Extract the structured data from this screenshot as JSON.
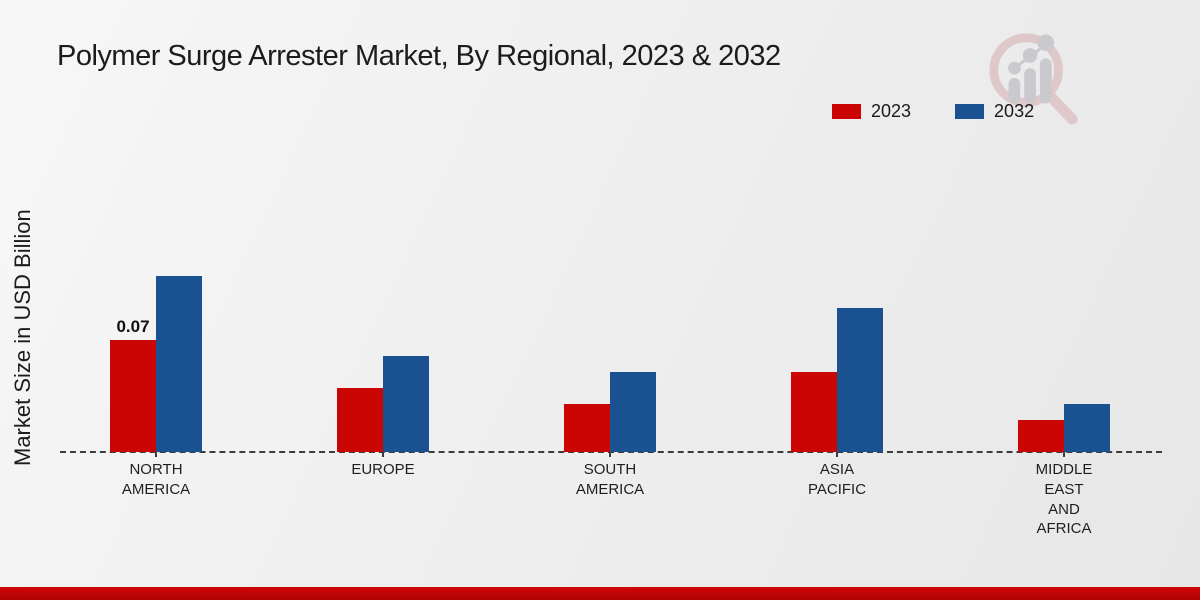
{
  "chart_data": {
    "type": "bar",
    "title": "Polymer Surge Arrester Market, By Regional, 2023 & 2032",
    "xlabel": "",
    "ylabel": "Market Size in USD Billion",
    "unit": "USD Billion",
    "categories": [
      "NORTH AMERICA",
      "EUROPE",
      "SOUTH AMERICA",
      "ASIA PACIFIC",
      "MIDDLE EAST AND AFRICA"
    ],
    "category_label_lines": [
      [
        "NORTH",
        "AMERICA"
      ],
      [
        "EUROPE"
      ],
      [
        "SOUTH",
        "AMERICA"
      ],
      [
        "ASIA",
        "PACIFIC"
      ],
      [
        "MIDDLE",
        "EAST",
        "AND",
        "AFRICA"
      ]
    ],
    "series": [
      {
        "name": "2023",
        "color": "#cb0404",
        "values": [
          0.07,
          0.04,
          0.03,
          0.05,
          0.02
        ]
      },
      {
        "name": "2032",
        "color": "#1a5190",
        "values": [
          0.11,
          0.06,
          0.05,
          0.09,
          0.03
        ]
      }
    ],
    "data_labels": [
      {
        "category_index": 0,
        "series_index": 0,
        "text": "0.07"
      }
    ],
    "ylim": [
      0,
      0.12
    ],
    "grid": false,
    "y_axis_ticks_visible": false,
    "axis_line_style": "dashed",
    "legend_position": "top-right"
  },
  "colors": {
    "series_2023": "#cb0404",
    "series_2032": "#1a5190",
    "footer_band": "#c00505",
    "text": "#1c1c1c",
    "watermark_ring": "#ddc3c5",
    "watermark_bars": "#c5c5c9"
  },
  "icons": {
    "watermark": "magnifier-growth-chart-logo"
  }
}
